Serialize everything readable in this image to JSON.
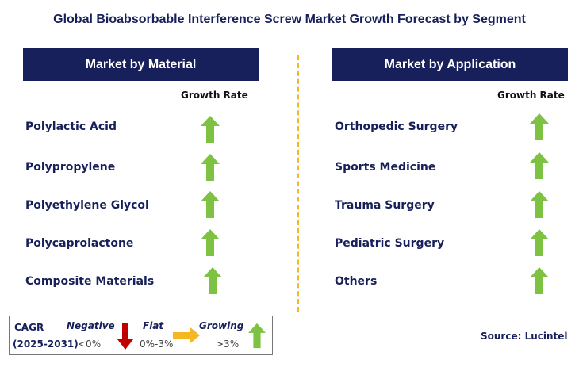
{
  "title": "Global Bioabsorbable Interference Screw Market Growth Forecast by Segment",
  "left_panel": {
    "header": "Market by Material",
    "growth_label": "Growth Rate",
    "rows": [
      "Polylactic Acid",
      "Polypropylene",
      "Polyethylene Glycol",
      "Polycaprolactone",
      "Composite Materials"
    ]
  },
  "right_panel": {
    "header": "Market by Application",
    "growth_label": "Growth Rate",
    "rows": [
      "Orthopedic Surgery",
      "Sports Medicine",
      "Trauma Surgery",
      "Pediatric Surgery",
      "Others"
    ]
  },
  "legend": {
    "cagr": "CAGR",
    "period": "(2025-2031)",
    "negative_label": "Negative",
    "negative_range": "<0%",
    "flat_label": "Flat",
    "flat_range": "0%-3%",
    "growing_label": "Growing",
    "growing_range": ">3%"
  },
  "source": "Source: Lucintel",
  "colors": {
    "header_bg": "#17205a",
    "growing_arrow": "#7dc242",
    "negative_arrow": "#c00000",
    "flat_arrow": "#f5b822",
    "divider": "#f5b822"
  },
  "icons": {
    "growth_arrow": "arrow-up-icon",
    "negative": "arrow-down-icon",
    "flat": "arrow-right-icon"
  }
}
